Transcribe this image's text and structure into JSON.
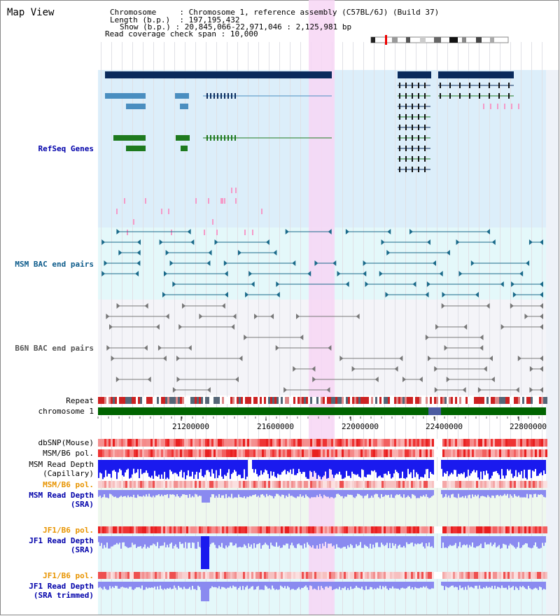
{
  "title": "Map View",
  "header": {
    "chromosome_label": "Chromosome",
    "chromosome_value": "Chromosome 1, reference assembly (C57BL/6J) (Build 37)",
    "length_label": "Length (b.p.)",
    "length_value": "197,195,432",
    "show_label": "Show (b.p.)",
    "show_value": "20,845,066-22,971,046 : 2,125,981 bp",
    "coverage_label": "Read coverage check span",
    "coverage_value": "10,000"
  },
  "tracks": {
    "refseq": "RefSeq Genes",
    "msm_bac": "MSM BAC end pairs",
    "b6n_bac": "B6N BAC end pairs",
    "repeat": "Repeat",
    "chromosome": "chromosome 1",
    "dbsnp": "dbSNP(Mouse)",
    "msm_b6_pol_1": "MSM/B6 pol.",
    "msm_read_depth_cap_1": "MSM Read Depth",
    "msm_read_depth_cap_2": "(Capillary)",
    "msm_b6_pol_2": "MSM/B6 pol.",
    "msm_read_depth_sra_1": "MSM Read Depth",
    "msm_read_depth_sra_2": "(SRA)",
    "jf1_b6_pol_1": "JF1/B6 pol.",
    "jf1_read_depth_sra_1": "JF1 Read Depth",
    "jf1_read_depth_sra_2": "(SRA)",
    "jf1_b6_pol_2": "JF1/B6 pol.",
    "jf1_read_depth_trim_1": "JF1 Read Depth",
    "jf1_read_depth_trim_2": "(SRA trimmed)"
  },
  "axis": {
    "ticks": [
      "21200000",
      "21600000",
      "22000000",
      "22400000",
      "22800000"
    ]
  },
  "colors": {
    "refseq_bg": "#dceefa",
    "msm_bg": "#e4f8fa",
    "b6n_bg": "#f4f4f8",
    "highlight": "#f7d6f5",
    "gene_navy": "#0a2a5c",
    "gene_blue": "#4a8ec0",
    "gene_green": "#1e7a1e",
    "msm_teal": "#1a6a8a",
    "chromosome_green": "#006400",
    "depth_blue": "#1a1aee",
    "depth_light": "#8a8af0",
    "pol_red": "#ee3333"
  }
}
